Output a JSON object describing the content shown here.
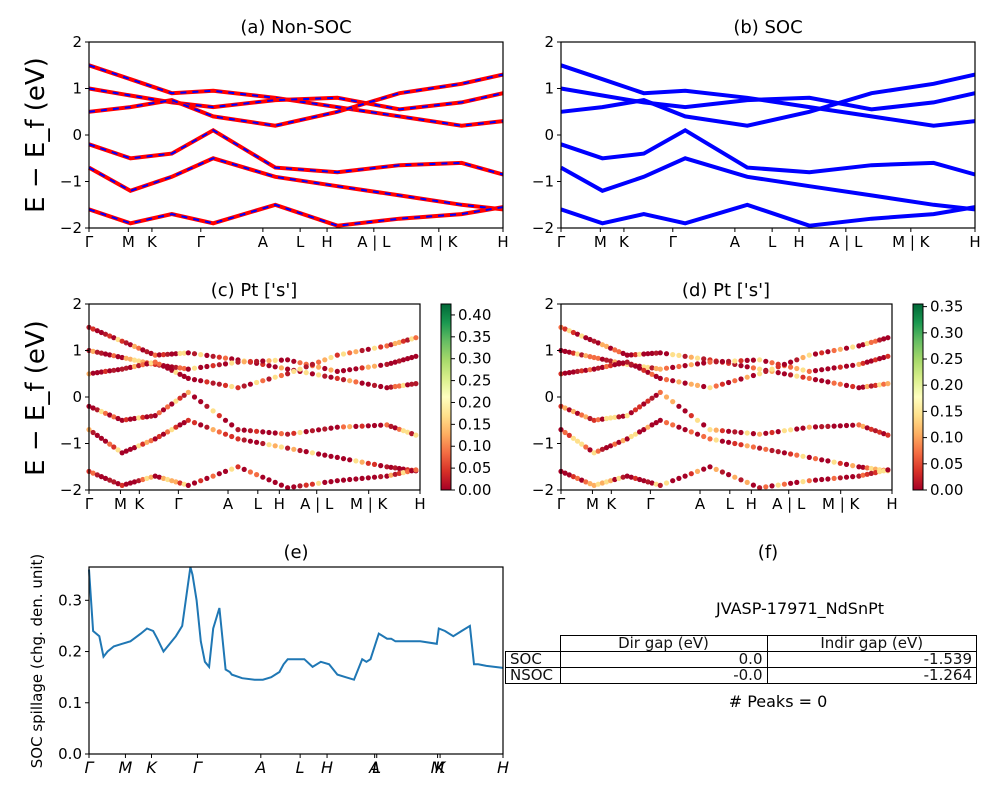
{
  "figure": {
    "panel_a_title": "(a) Non-SOC",
    "panel_b_title": "(b) SOC",
    "panel_c_title": "(c)  Pt ['s']",
    "panel_d_title": "(d) Pt ['s']",
    "panel_e_title": "(e)",
    "panel_f_title": "(f)",
    "energy_ylabel": "E − E_f (eV)",
    "spillage_ylabel": "SOC spillage (chg. den. unit)",
    "kpath_labels": [
      "Γ",
      "M",
      "K",
      "Γ",
      "A",
      "L",
      "H",
      "A | L",
      "M | K",
      "H"
    ],
    "spillage_xticks": [
      "Γ",
      "M",
      "K",
      "Γ",
      "A",
      "L",
      "H",
      "A",
      "L",
      "M",
      "K",
      "H"
    ],
    "energy_yticks": [
      "−2",
      "−1",
      "0",
      "1",
      "2"
    ],
    "spillage_yticks": [
      "0.0",
      "0.1",
      "0.2",
      "0.3"
    ],
    "colorbar_c_ticks": [
      "0.00",
      "0.05",
      "0.10",
      "0.15",
      "0.20",
      "0.25",
      "0.30",
      "0.35",
      "0.40"
    ],
    "colorbar_d_ticks": [
      "0.00",
      "0.05",
      "0.10",
      "0.15",
      "0.20",
      "0.25",
      "0.30",
      "0.35"
    ]
  },
  "info": {
    "material_id": "JVASP-17971_NdSnPt",
    "col_header_1": "Dir gap (eV)",
    "col_header_2": "Indir gap (eV)",
    "rows": [
      {
        "label": "SOC",
        "dir": "0.0",
        "indir": "-1.539"
      },
      {
        "label": "NSOC",
        "dir": "-0.0",
        "indir": "-1.264"
      }
    ],
    "peaks": "# Peaks = 0"
  },
  "colors": {
    "nonsoc_band": "#ff0000",
    "nonsoc_dash": "#0000ff",
    "soc_band": "#0000ff",
    "spillage_line": "#1f77b4"
  },
  "chart_data": [
    {
      "type": "line",
      "title": "(a) Non-SOC",
      "ylabel": "E − E_f (eV)",
      "ylim": [
        -2,
        2
      ],
      "x_ticks": [
        "Γ",
        "M",
        "K",
        "Γ",
        "A",
        "L",
        "H",
        "A | L",
        "M | K",
        "H"
      ],
      "series": [
        {
          "values": [
            [
              0,
              1.5
            ],
            [
              0.1,
              1.2
            ],
            [
              0.2,
              0.9
            ],
            [
              0.3,
              0.95
            ],
            [
              0.45,
              0.8
            ],
            [
              0.6,
              0.6
            ],
            [
              0.75,
              0.4
            ],
            [
              0.9,
              0.2
            ],
            [
              1,
              0.3
            ]
          ]
        },
        {
          "values": [
            [
              0,
              1.0
            ],
            [
              0.1,
              0.85
            ],
            [
              0.2,
              0.7
            ],
            [
              0.3,
              0.6
            ],
            [
              0.45,
              0.75
            ],
            [
              0.6,
              0.8
            ],
            [
              0.75,
              0.55
            ],
            [
              0.9,
              0.7
            ],
            [
              1,
              0.9
            ]
          ]
        },
        {
          "values": [
            [
              0,
              0.5
            ],
            [
              0.1,
              0.6
            ],
            [
              0.2,
              0.75
            ],
            [
              0.3,
              0.4
            ],
            [
              0.45,
              0.2
            ],
            [
              0.6,
              0.5
            ],
            [
              0.75,
              0.9
            ],
            [
              0.9,
              1.1
            ],
            [
              1,
              1.3
            ]
          ]
        },
        {
          "values": [
            [
              0,
              -0.2
            ],
            [
              0.1,
              -0.5
            ],
            [
              0.2,
              -0.4
            ],
            [
              0.3,
              0.1
            ],
            [
              0.45,
              -0.7
            ],
            [
              0.6,
              -0.8
            ],
            [
              0.75,
              -0.65
            ],
            [
              0.9,
              -0.6
            ],
            [
              1,
              -0.85
            ]
          ]
        },
        {
          "values": [
            [
              0,
              -0.7
            ],
            [
              0.1,
              -1.2
            ],
            [
              0.2,
              -0.9
            ],
            [
              0.3,
              -0.5
            ],
            [
              0.45,
              -0.9
            ],
            [
              0.6,
              -1.1
            ],
            [
              0.75,
              -1.3
            ],
            [
              0.9,
              -1.5
            ],
            [
              1,
              -1.6
            ]
          ]
        },
        {
          "values": [
            [
              0,
              -1.6
            ],
            [
              0.1,
              -1.9
            ],
            [
              0.2,
              -1.7
            ],
            [
              0.3,
              -1.9
            ],
            [
              0.45,
              -1.5
            ],
            [
              0.6,
              -1.95
            ],
            [
              0.75,
              -1.8
            ],
            [
              0.9,
              -1.7
            ],
            [
              1,
              -1.55
            ]
          ]
        }
      ]
    },
    {
      "type": "line",
      "title": "(b) SOC",
      "ylabel": "",
      "ylim": [
        -2,
        2
      ],
      "x_ticks": [
        "Γ",
        "M",
        "K",
        "Γ",
        "A",
        "L",
        "H",
        "A | L",
        "M | K",
        "H"
      ],
      "series": [
        {
          "values": [
            [
              0,
              1.5
            ],
            [
              0.1,
              1.2
            ],
            [
              0.2,
              0.9
            ],
            [
              0.3,
              0.95
            ],
            [
              0.45,
              0.8
            ],
            [
              0.6,
              0.6
            ],
            [
              0.75,
              0.4
            ],
            [
              0.9,
              0.2
            ],
            [
              1,
              0.3
            ]
          ]
        },
        {
          "values": [
            [
              0,
              1.0
            ],
            [
              0.1,
              0.85
            ],
            [
              0.2,
              0.7
            ],
            [
              0.3,
              0.6
            ],
            [
              0.45,
              0.75
            ],
            [
              0.6,
              0.8
            ],
            [
              0.75,
              0.55
            ],
            [
              0.9,
              0.7
            ],
            [
              1,
              0.9
            ]
          ]
        },
        {
          "values": [
            [
              0,
              0.5
            ],
            [
              0.1,
              0.6
            ],
            [
              0.2,
              0.75
            ],
            [
              0.3,
              0.4
            ],
            [
              0.45,
              0.2
            ],
            [
              0.6,
              0.5
            ],
            [
              0.75,
              0.9
            ],
            [
              0.9,
              1.1
            ],
            [
              1,
              1.3
            ]
          ]
        },
        {
          "values": [
            [
              0,
              -0.2
            ],
            [
              0.1,
              -0.5
            ],
            [
              0.2,
              -0.4
            ],
            [
              0.3,
              0.1
            ],
            [
              0.45,
              -0.7
            ],
            [
              0.6,
              -0.8
            ],
            [
              0.75,
              -0.65
            ],
            [
              0.9,
              -0.6
            ],
            [
              1,
              -0.85
            ]
          ]
        },
        {
          "values": [
            [
              0,
              -0.7
            ],
            [
              0.1,
              -1.2
            ],
            [
              0.2,
              -0.9
            ],
            [
              0.3,
              -0.5
            ],
            [
              0.45,
              -0.9
            ],
            [
              0.6,
              -1.1
            ],
            [
              0.75,
              -1.3
            ],
            [
              0.9,
              -1.5
            ],
            [
              1,
              -1.6
            ]
          ]
        },
        {
          "values": [
            [
              0,
              -1.6
            ],
            [
              0.1,
              -1.9
            ],
            [
              0.2,
              -1.7
            ],
            [
              0.3,
              -1.9
            ],
            [
              0.45,
              -1.5
            ],
            [
              0.6,
              -1.95
            ],
            [
              0.75,
              -1.8
            ],
            [
              0.9,
              -1.7
            ],
            [
              1,
              -1.55
            ]
          ]
        }
      ]
    },
    {
      "type": "scatter",
      "title": "(c)  Pt ['s']",
      "ylim": [
        -2,
        2
      ],
      "colorbar_range": [
        0,
        0.42
      ],
      "x_ticks": [
        "Γ",
        "M",
        "K",
        "Γ",
        "A",
        "L",
        "H",
        "A | L",
        "M | K",
        "H"
      ]
    },
    {
      "type": "scatter",
      "title": "(d) Pt ['s']",
      "ylim": [
        -2,
        2
      ],
      "colorbar_range": [
        0,
        0.35
      ],
      "x_ticks": [
        "Γ",
        "M",
        "K",
        "Γ",
        "A",
        "L",
        "H",
        "A | L",
        "M | K",
        "H"
      ]
    },
    {
      "type": "line",
      "title": "(e)",
      "ylabel": "SOC spillage (chg. den. unit)",
      "ylim": [
        0,
        0.365
      ],
      "x_ticks": [
        "Γ",
        "M",
        "K",
        "Γ",
        "A",
        "L",
        "H",
        "A",
        "L",
        "M",
        "K",
        "H"
      ],
      "x": [
        0,
        0.01,
        0.025,
        0.035,
        0.045,
        0.06,
        0.08,
        0.1,
        0.125,
        0.14,
        0.155,
        0.165,
        0.18,
        0.2,
        0.21,
        0.225,
        0.245,
        0.25,
        0.26,
        0.27,
        0.28,
        0.29,
        0.3,
        0.315,
        0.33,
        0.34,
        0.345,
        0.37,
        0.4,
        0.42,
        0.44,
        0.46,
        0.47,
        0.48,
        0.5,
        0.52,
        0.54,
        0.56,
        0.58,
        0.6,
        0.62,
        0.64,
        0.66,
        0.67,
        0.68,
        0.7,
        0.72,
        0.73,
        0.74,
        0.76,
        0.8,
        0.84,
        0.845,
        0.86,
        0.88,
        0.9,
        0.92,
        0.93,
        0.94,
        0.96,
        1.0
      ],
      "values": [
        0.36,
        0.24,
        0.23,
        0.19,
        0.2,
        0.21,
        0.215,
        0.22,
        0.235,
        0.245,
        0.24,
        0.225,
        0.2,
        0.22,
        0.23,
        0.25,
        0.365,
        0.35,
        0.3,
        0.22,
        0.18,
        0.17,
        0.245,
        0.285,
        0.165,
        0.16,
        0.155,
        0.148,
        0.145,
        0.145,
        0.15,
        0.16,
        0.175,
        0.185,
        0.185,
        0.185,
        0.17,
        0.18,
        0.175,
        0.155,
        0.15,
        0.145,
        0.185,
        0.18,
        0.185,
        0.235,
        0.225,
        0.225,
        0.22,
        0.22,
        0.22,
        0.215,
        0.245,
        0.24,
        0.23,
        0.24,
        0.25,
        0.175,
        0.175,
        0.172,
        0.168
      ]
    }
  ]
}
